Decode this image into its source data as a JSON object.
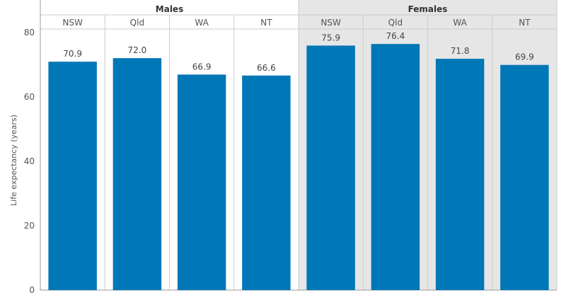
{
  "chart_data": {
    "type": "bar",
    "ylabel": "Life expectancy (years)",
    "ylim": [
      0,
      85
    ],
    "yticks": [
      0,
      20,
      40,
      60,
      80
    ],
    "grid": false,
    "groups": [
      {
        "name": "Males",
        "shaded": false,
        "categories": [
          "NSW",
          "Qld",
          "WA",
          "NT"
        ],
        "values": [
          70.9,
          72.0,
          66.9,
          66.6
        ],
        "value_labels": [
          "70.9",
          "72.0",
          "66.9",
          "66.6"
        ]
      },
      {
        "name": "Females",
        "shaded": true,
        "categories": [
          "NSW",
          "Qld",
          "WA",
          "NT"
        ],
        "values": [
          75.9,
          76.4,
          71.8,
          69.9
        ],
        "value_labels": [
          "75.9",
          "76.4",
          "71.8",
          "69.9"
        ]
      }
    ],
    "colors": {
      "bar": "#0077b6",
      "shaded_panel": "#e6e6e6",
      "divider": "#cccccc",
      "axis": "#999999"
    }
  }
}
